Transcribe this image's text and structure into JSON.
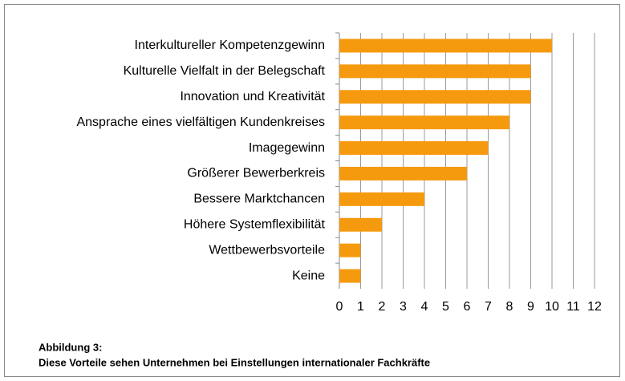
{
  "chart_data": {
    "type": "bar",
    "orientation": "horizontal",
    "title": "Abbildung 3:",
    "subtitle": "Diese Vorteile sehen Unternehmen bei Einstellungen internationaler Fachkräfte",
    "categories": [
      "Interkultureller Kompetenzgewinn",
      "Kulturelle Vielfalt in der Belegschaft",
      "Innovation und Kreativität",
      "Ansprache eines vielfältigen Kundenkreises",
      "Imagegewinn",
      "Größerer Bewerberkreis",
      "Bessere Marktchancen",
      "Höhere Systemflexibilität",
      "Wettbewerbsvorteile",
      "Keine"
    ],
    "values": [
      10,
      9,
      9,
      8,
      7,
      6,
      4,
      2,
      1,
      1
    ],
    "color": "#f59a0f",
    "xlim": [
      0,
      12
    ],
    "xticks": [
      0,
      1,
      2,
      3,
      4,
      5,
      6,
      7,
      8,
      9,
      10,
      11,
      12
    ],
    "grid": true
  }
}
